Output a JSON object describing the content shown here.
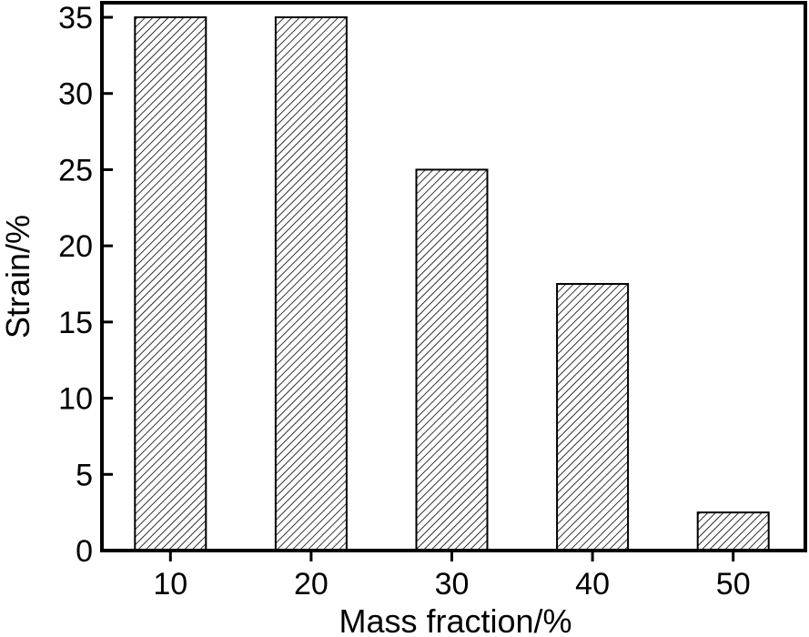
{
  "chart_data": {
    "type": "bar",
    "categories": [
      "10",
      "20",
      "30",
      "40",
      "50"
    ],
    "values": [
      35,
      35,
      25,
      17.5,
      2.5
    ],
    "xlabel": "Mass fraction/%",
    "ylabel": "Strain/%",
    "ylim": [
      0,
      35
    ],
    "yticks": [
      "0",
      "5",
      "10",
      "15",
      "20",
      "25",
      "30",
      "35"
    ],
    "grid": false,
    "bar_fill": "hatched",
    "colors": {
      "bar_stroke": "#000000",
      "hatch": "#000000",
      "background": "#ffffff"
    }
  }
}
